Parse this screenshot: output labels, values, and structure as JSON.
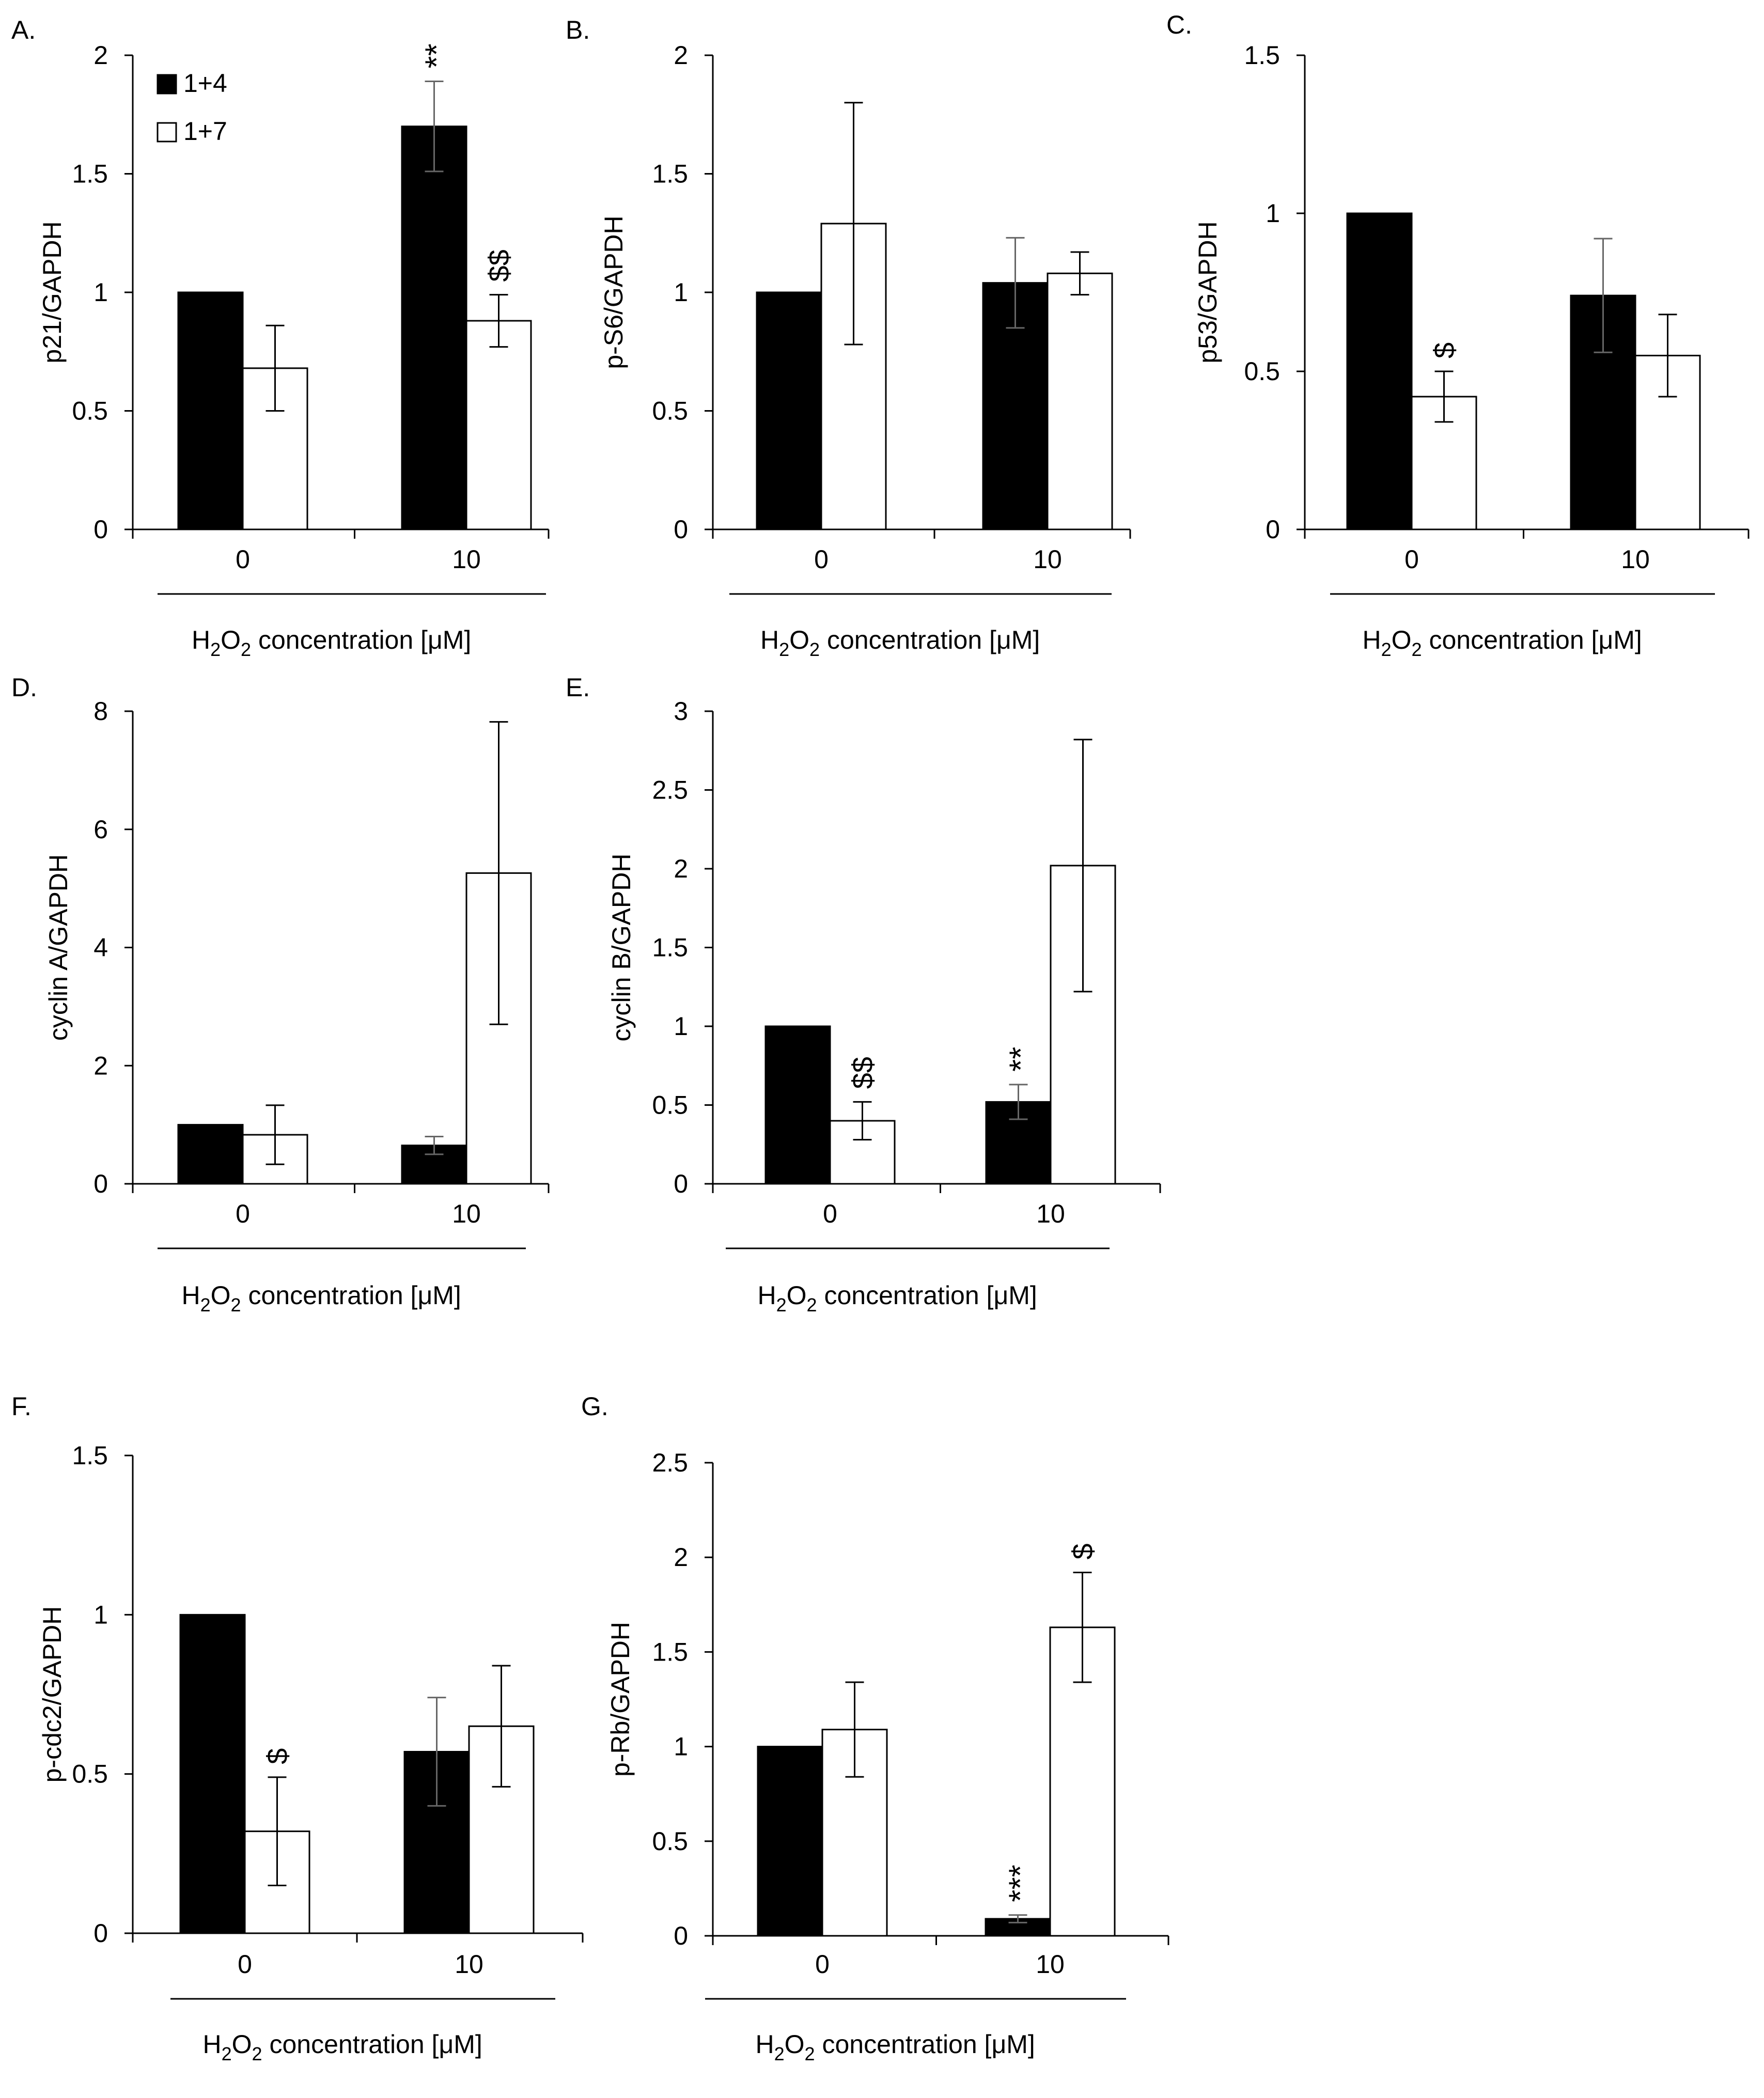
{
  "legend": [
    {
      "label": "1+4",
      "color": "#000000"
    },
    {
      "label": "1+7",
      "color": "#ffffff"
    }
  ],
  "xlabel": {
    "prefix": "H",
    "sub1": "2",
    "mid": "O",
    "sub2": "2",
    "suffix": " concentration [μM]"
  },
  "chart_data": [
    {
      "id": "A",
      "panel_label": "A.",
      "type": "bar",
      "ylabel": "p21/GAPDH",
      "ylim": [
        0,
        2
      ],
      "ticks": [
        "0",
        "0.5",
        "1",
        "1.5",
        "2"
      ],
      "categories": [
        "0",
        "10"
      ],
      "series": [
        {
          "name": "1+4",
          "values": [
            1.0,
            1.7
          ],
          "errors": [
            0.0,
            0.19
          ]
        },
        {
          "name": "1+7",
          "values": [
            0.68,
            0.88
          ],
          "errors": [
            0.18,
            0.11
          ]
        }
      ],
      "annotations": [
        {
          "text": "**",
          "category": 1,
          "series": 0
        },
        {
          "text": "$$",
          "category": 1,
          "series": 1
        }
      ]
    },
    {
      "id": "B",
      "panel_label": "B.",
      "type": "bar",
      "ylabel": "p-S6/GAPDH",
      "ylim": [
        0,
        2
      ],
      "ticks": [
        "0",
        "0.5",
        "1",
        "1.5",
        "2"
      ],
      "categories": [
        "0",
        "10"
      ],
      "series": [
        {
          "name": "1+4",
          "values": [
            1.0,
            1.04
          ],
          "errors": [
            0.0,
            0.19
          ]
        },
        {
          "name": "1+7",
          "values": [
            1.29,
            1.08
          ],
          "errors": [
            0.51,
            0.09
          ]
        }
      ],
      "annotations": []
    },
    {
      "id": "C",
      "panel_label": "C.",
      "type": "bar",
      "ylabel": "p53/GAPDH",
      "ylim": [
        0,
        1.5
      ],
      "ticks": [
        "0",
        "0.5",
        "1",
        "1.5"
      ],
      "categories": [
        "0",
        "10"
      ],
      "series": [
        {
          "name": "1+4",
          "values": [
            1.0,
            0.74
          ],
          "errors": [
            0.0,
            0.18
          ]
        },
        {
          "name": "1+7",
          "values": [
            0.42,
            0.55
          ],
          "errors": [
            0.08,
            0.13
          ]
        }
      ],
      "annotations": [
        {
          "text": "$",
          "category": 0,
          "series": 1
        }
      ]
    },
    {
      "id": "D",
      "panel_label": "D.",
      "type": "bar",
      "ylabel": "cyclin A/GAPDH",
      "ylim": [
        0,
        8
      ],
      "ticks": [
        "0",
        "2",
        "4",
        "6",
        "8"
      ],
      "categories": [
        "0",
        "10"
      ],
      "series": [
        {
          "name": "1+4",
          "values": [
            1.0,
            0.65
          ],
          "errors": [
            0.0,
            0.15
          ]
        },
        {
          "name": "1+7",
          "values": [
            0.83,
            5.26
          ],
          "errors": [
            0.5,
            2.56
          ]
        }
      ],
      "annotations": []
    },
    {
      "id": "E",
      "panel_label": "E.",
      "type": "bar",
      "ylabel": "cyclin B/GAPDH",
      "ylim": [
        0,
        3
      ],
      "ticks": [
        "0",
        "0.5",
        "1",
        "1.5",
        "2",
        "2.5",
        "3"
      ],
      "categories": [
        "0",
        "10"
      ],
      "series": [
        {
          "name": "1+4",
          "values": [
            1.0,
            0.52
          ],
          "errors": [
            0.0,
            0.11
          ]
        },
        {
          "name": "1+7",
          "values": [
            0.4,
            2.02
          ],
          "errors": [
            0.12,
            0.8
          ]
        }
      ],
      "annotations": [
        {
          "text": "$$",
          "category": 0,
          "series": 1
        },
        {
          "text": "**",
          "category": 1,
          "series": 0
        }
      ]
    },
    {
      "id": "F",
      "panel_label": "F.",
      "type": "bar",
      "ylabel": "p-cdc2/GAPDH",
      "ylim": [
        0,
        1.5
      ],
      "ticks": [
        "0",
        "0.5",
        "1",
        "1.5"
      ],
      "categories": [
        "0",
        "10"
      ],
      "series": [
        {
          "name": "1+4",
          "values": [
            1.0,
            0.57
          ],
          "errors": [
            0.0,
            0.17
          ]
        },
        {
          "name": "1+7",
          "values": [
            0.32,
            0.65
          ],
          "errors": [
            0.17,
            0.19
          ]
        }
      ],
      "annotations": [
        {
          "text": "$",
          "category": 0,
          "series": 1
        }
      ]
    },
    {
      "id": "G",
      "panel_label": "G.",
      "type": "bar",
      "ylabel": "p-Rb/GAPDH",
      "ylim": [
        0,
        2.5
      ],
      "ticks": [
        "0",
        "0.5",
        "1",
        "1.5",
        "2",
        "2.5"
      ],
      "categories": [
        "0",
        "10"
      ],
      "series": [
        {
          "name": "1+4",
          "values": [
            1.0,
            0.09
          ],
          "errors": [
            0.0,
            0.02
          ]
        },
        {
          "name": "1+7",
          "values": [
            1.09,
            1.63
          ],
          "errors": [
            0.25,
            0.29
          ]
        }
      ],
      "annotations": [
        {
          "text": "***",
          "category": 1,
          "series": 0
        },
        {
          "text": "$",
          "category": 1,
          "series": 1
        }
      ]
    }
  ]
}
